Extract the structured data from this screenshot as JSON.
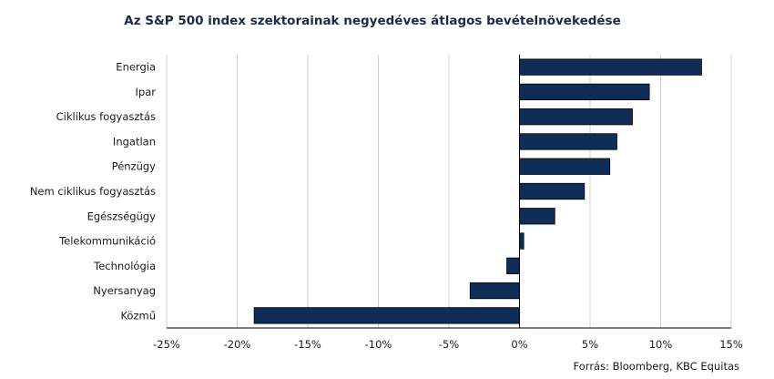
{
  "chart_data": {
    "type": "bar",
    "orientation": "horizontal",
    "title": "Az S&P 500 index szektorainak negyedéves átlagos bevételnövekedése",
    "categories": [
      "Energia",
      "Ipar",
      "Ciklikus fogyasztás",
      "Ingatlan",
      "Pénzügy",
      "Nem ciklikus fogyasztás",
      "Egészségügy",
      "Telekommunikáció",
      "Technológia",
      "Nyersanyag",
      "Közmű"
    ],
    "values": [
      12.9,
      9.2,
      8.0,
      6.9,
      6.4,
      4.6,
      2.5,
      0.3,
      -0.9,
      -3.5,
      -18.8
    ],
    "xlim": [
      -25,
      15
    ],
    "xticks": [
      -25,
      -20,
      -15,
      -10,
      -5,
      0,
      5,
      10,
      15
    ],
    "tick_labels": [
      "-25%",
      "-20%",
      "-15%",
      "-10%",
      "-5%",
      "0%",
      "5%",
      "10%",
      "15%"
    ],
    "grid": true,
    "bar_color": "#0f2d57",
    "source": "Forrás: Bloomberg,  KBC Equitas"
  }
}
